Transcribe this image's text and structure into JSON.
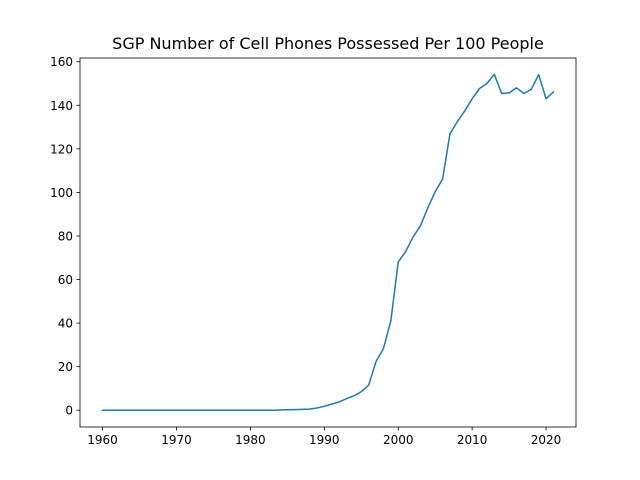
{
  "chart_data": {
    "type": "line",
    "title": "SGP Number of Cell Phones Possessed Per 100 People",
    "xlabel": "",
    "ylabel": "",
    "xlim": [
      1956.95,
      2024.05
    ],
    "ylim": [
      -7.7,
      161.7
    ],
    "xticks": [
      1960,
      1970,
      1980,
      1990,
      2000,
      2010,
      2020
    ],
    "yticks": [
      0,
      20,
      40,
      60,
      80,
      100,
      120,
      140,
      160
    ],
    "grid": false,
    "line_color": "#1f77b4",
    "series": [
      {
        "x": [
          1960,
          1961,
          1962,
          1963,
          1964,
          1965,
          1966,
          1967,
          1968,
          1969,
          1970,
          1971,
          1972,
          1973,
          1974,
          1975,
          1976,
          1977,
          1978,
          1979,
          1980,
          1981,
          1982,
          1983,
          1984,
          1985,
          1986,
          1987,
          1988,
          1989,
          1990,
          1991,
          1992,
          1993,
          1994,
          1995,
          1996,
          1997,
          1998,
          1999,
          2000,
          2001,
          2002,
          2003,
          2004,
          2005,
          2006,
          2007,
          2008,
          2009,
          2010,
          2011,
          2012,
          2013,
          2014,
          2015,
          2016,
          2017,
          2018,
          2019,
          2020,
          2021
        ],
        "y": [
          0,
          0,
          0,
          0,
          0,
          0,
          0,
          0,
          0,
          0,
          0,
          0,
          0,
          0,
          0,
          0,
          0,
          0,
          0,
          0,
          0,
          0,
          0,
          0,
          0.1,
          0.2,
          0.3,
          0.4,
          0.5,
          1.0,
          1.8,
          2.8,
          3.8,
          5.3,
          6.6,
          8.5,
          11.5,
          22.4,
          28.3,
          41.0,
          68.0,
          72.8,
          79.5,
          84.6,
          92.9,
          100.3,
          106.1,
          126.9,
          132.5,
          137.4,
          143.0,
          147.7,
          150.0,
          154.2,
          145.4,
          145.7,
          148.0,
          145.4,
          147.3,
          154.1,
          143.0,
          146.1
        ]
      }
    ]
  }
}
